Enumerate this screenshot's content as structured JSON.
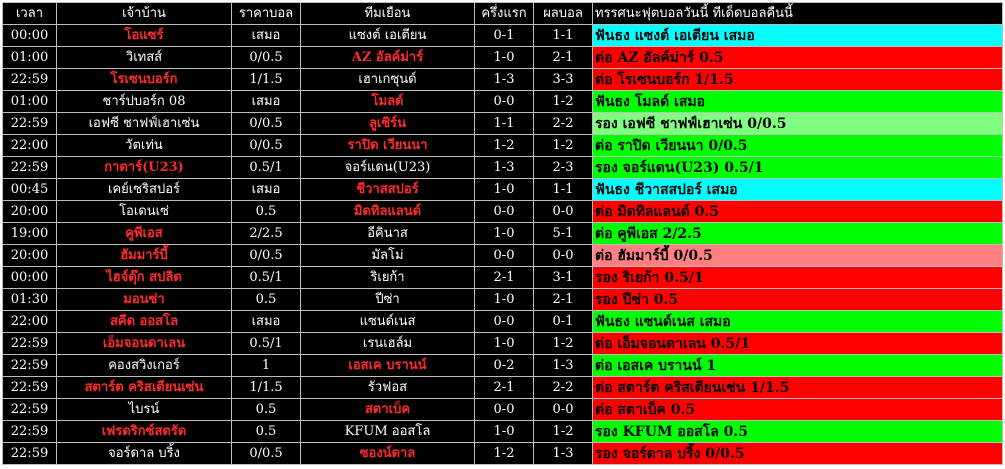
{
  "header": {
    "time": "เวลา",
    "home": "เจ้าบ้าน",
    "handicap": "ราคาบอล",
    "away": "ทีมเยือน",
    "half_time": "ครึ่งแรก",
    "result": "ผลบอล",
    "tip": "ทรรศนะฟุตบอลวันนี้ ทีเด็ดบอลคืนนี้"
  },
  "rows": [
    {
      "time": "00:00",
      "home": "โอแซร์",
      "home_fav": true,
      "handicap": "เสมอ",
      "away": "แซงต์ เอเตียน",
      "away_fav": false,
      "ht": "0-1",
      "ft": "1-1",
      "tip": "ฟันธง แซงต์ เอเตียน เสมอ",
      "tip_color": "cyan"
    },
    {
      "time": "01:00",
      "home": "วิเทสส์",
      "home_fav": false,
      "handicap": "0/0.5",
      "away": "AZ อัลค์ม่าร์",
      "away_fav": true,
      "ht": "1-0",
      "ft": "2-1",
      "tip": "ต่อ AZ อัลค์ม่าร์ 0.5",
      "tip_color": "red"
    },
    {
      "time": "22:59",
      "home": "โรเซนบอร์ก",
      "home_fav": true,
      "handicap": "1/1.5",
      "away": "เฮาเกซุนด์",
      "away_fav": false,
      "ht": "1-3",
      "ft": "3-3",
      "tip": "ต่อ โรเซนบอร์ก 1/1.5",
      "tip_color": "red"
    },
    {
      "time": "01:00",
      "home": "ชาร์ปบอร์ก 08",
      "home_fav": false,
      "handicap": "เสมอ",
      "away": "โมลด์",
      "away_fav": true,
      "ht": "0-0",
      "ft": "1-2",
      "tip": "ฟันธง โมลด์ เสมอ",
      "tip_color": "green"
    },
    {
      "time": "22:59",
      "home": "เอฟซี ชาฟฟ์เฮาเซ่น",
      "home_fav": false,
      "handicap": "0/0.5",
      "away": "ลูเซิร์น",
      "away_fav": true,
      "ht": "1-1",
      "ft": "2-2",
      "tip": "รอง เอฟซี ชาฟฟ์เฮาเซ่น 0/0.5",
      "tip_color": "lightgreen"
    },
    {
      "time": "22:00",
      "home": "วัตเท่น",
      "home_fav": false,
      "handicap": "0/0.5",
      "away": "ราปิด เวียนนา",
      "away_fav": true,
      "ht": "1-2",
      "ft": "1-2",
      "tip": "ต่อ ราปิด เวียนนา 0/0.5",
      "tip_color": "green"
    },
    {
      "time": "22:59",
      "home": "กาตาร์(U23)",
      "home_fav": true,
      "handicap": "0.5/1",
      "away": "จอร์แดน(U23)",
      "away_fav": false,
      "ht": "1-3",
      "ft": "2-3",
      "tip": "รอง จอร์แดน(U23) 0.5/1",
      "tip_color": "green"
    },
    {
      "time": "00:45",
      "home": "เคย์เซริสปอร์",
      "home_fav": false,
      "handicap": "เสมอ",
      "away": "ชีวาสสปอร์",
      "away_fav": true,
      "ht": "1-0",
      "ft": "1-1",
      "tip": "ฟันธง ชีวาสสปอร์ เสมอ",
      "tip_color": "cyan"
    },
    {
      "time": "20:00",
      "home": "โอเดนเซ่",
      "home_fav": false,
      "handicap": "0.5",
      "away": "มิดทิลแลนด์",
      "away_fav": true,
      "ht": "0-0",
      "ft": "0-0",
      "tip": "ต่อ มิดทิลแลนด์ 0.5",
      "tip_color": "red"
    },
    {
      "time": "19:00",
      "home": "คูพีเอส",
      "home_fav": true,
      "handicap": "2/2.5",
      "away": "อีคินาส",
      "away_fav": false,
      "ht": "1-0",
      "ft": "5-1",
      "tip": "ต่อ คูพีเอส 2/2.5",
      "tip_color": "green"
    },
    {
      "time": "20:00",
      "home": "ฮัมมาร์บี้",
      "home_fav": true,
      "handicap": "0/0.5",
      "away": "มัลโม่",
      "away_fav": false,
      "ht": "0-0",
      "ft": "0-0",
      "tip": "ต่อ ฮัมมาร์บี้ 0/0.5",
      "tip_color": "salmon"
    },
    {
      "time": "00:00",
      "home": "ไฮจ์ดุ๊ก สปลิต",
      "home_fav": true,
      "handicap": "0.5/1",
      "away": "ริเยก้า",
      "away_fav": false,
      "ht": "2-1",
      "ft": "3-1",
      "tip": "รอง ริเยก้า 0.5/1",
      "tip_color": "red"
    },
    {
      "time": "01:30",
      "home": "มอนซ่า",
      "home_fav": true,
      "handicap": "0.5",
      "away": "ปีซ่า",
      "away_fav": false,
      "ht": "1-0",
      "ft": "2-1",
      "tip": "รอง ปีซ่า 0.5",
      "tip_color": "red"
    },
    {
      "time": "22:00",
      "home": "สคีด ออสโล",
      "home_fav": true,
      "handicap": "เสมอ",
      "away": "แซนด์เนส",
      "away_fav": false,
      "ht": "0-0",
      "ft": "0-1",
      "tip": "ฟันธง แซนด์เนส เสมอ",
      "tip_color": "green"
    },
    {
      "time": "22:59",
      "home": "เอ็มจอนดาเลน",
      "home_fav": true,
      "handicap": "0.5/1",
      "away": "เรนเฮล์ม",
      "away_fav": false,
      "ht": "1-0",
      "ft": "1-2",
      "tip": "ต่อ เอ็มจอนดาเลน 0.5/1",
      "tip_color": "red"
    },
    {
      "time": "22:59",
      "home": "คองสวิงเกอร์",
      "home_fav": false,
      "handicap": "1",
      "away": "เอสเค บรานน์",
      "away_fav": true,
      "ht": "0-2",
      "ft": "1-3",
      "tip": "ต่อ เอสเค บรานน์ 1",
      "tip_color": "green"
    },
    {
      "time": "22:59",
      "home": "สตาร์ต คริสเตียนเซ่น",
      "home_fav": true,
      "handicap": "1/1.5",
      "away": "รัวฟอส",
      "away_fav": false,
      "ht": "2-1",
      "ft": "2-2",
      "tip": "ต่อ สตาร์ต คริสเตียนเซ่น 1/1.5",
      "tip_color": "red"
    },
    {
      "time": "22:59",
      "home": "ไบรน์",
      "home_fav": false,
      "handicap": "0.5",
      "away": "สตาเบ็ค",
      "away_fav": true,
      "ht": "0-0",
      "ft": "0-0",
      "tip": "ต่อ สตาเบ็ค 0.5",
      "tip_color": "red"
    },
    {
      "time": "22:59",
      "home": "เฟรดริกซ์สตรัด",
      "home_fav": true,
      "handicap": "0.5",
      "away": "KFUM ออสโล",
      "away_fav": false,
      "ht": "1-0",
      "ft": "1-2",
      "tip": "รอง KFUM ออสโล 0.5",
      "tip_color": "green"
    },
    {
      "time": "22:59",
      "home": "จอร์ดาล บริ้ง",
      "home_fav": false,
      "handicap": "0/0.5",
      "away": "ซองน์ดาล",
      "away_fav": true,
      "ht": "1-2",
      "ft": "1-3",
      "tip": "รอง จอร์ดาล บริ้ง 0/0.5",
      "tip_color": "red"
    }
  ]
}
